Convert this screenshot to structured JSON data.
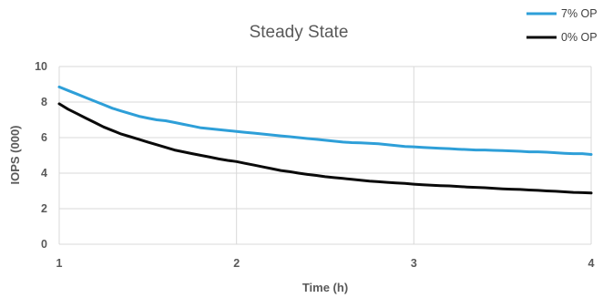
{
  "chart_data": {
    "type": "line",
    "title": "Steady State",
    "xlabel": "Time (h)",
    "ylabel": "IOPS (000)",
    "xlim": [
      1,
      4
    ],
    "ylim": [
      0,
      10
    ],
    "x_ticks": [
      "1",
      "2",
      "3",
      "4"
    ],
    "y_ticks": [
      "0",
      "2",
      "4",
      "6",
      "8",
      "10"
    ],
    "grid": true,
    "legend_position": "top-right",
    "series": [
      {
        "name": "7% OP",
        "color": "#2e9fd8",
        "x": [
          1.0,
          1.05,
          1.1,
          1.15,
          1.2,
          1.25,
          1.3,
          1.35,
          1.4,
          1.45,
          1.5,
          1.55,
          1.6,
          1.65,
          1.7,
          1.75,
          1.8,
          1.85,
          1.9,
          1.95,
          2.0,
          2.05,
          2.1,
          2.15,
          2.2,
          2.25,
          2.3,
          2.35,
          2.4,
          2.45,
          2.5,
          2.55,
          2.6,
          2.65,
          2.7,
          2.75,
          2.8,
          2.85,
          2.9,
          2.95,
          3.0,
          3.05,
          3.1,
          3.15,
          3.2,
          3.25,
          3.3,
          3.35,
          3.4,
          3.45,
          3.5,
          3.55,
          3.6,
          3.65,
          3.7,
          3.75,
          3.8,
          3.85,
          3.9,
          3.95,
          4.0
        ],
        "values": [
          8.85,
          8.65,
          8.45,
          8.25,
          8.05,
          7.85,
          7.65,
          7.5,
          7.35,
          7.2,
          7.1,
          7.0,
          6.95,
          6.85,
          6.75,
          6.65,
          6.55,
          6.5,
          6.45,
          6.4,
          6.35,
          6.3,
          6.25,
          6.2,
          6.15,
          6.1,
          6.05,
          6.0,
          5.95,
          5.9,
          5.85,
          5.8,
          5.75,
          5.72,
          5.7,
          5.68,
          5.65,
          5.6,
          5.55,
          5.5,
          5.48,
          5.45,
          5.42,
          5.4,
          5.38,
          5.35,
          5.33,
          5.3,
          5.3,
          5.28,
          5.27,
          5.25,
          5.23,
          5.2,
          5.2,
          5.18,
          5.15,
          5.12,
          5.1,
          5.1,
          5.05
        ]
      },
      {
        "name": "0% OP",
        "color": "#0a0a0a",
        "x": [
          1.0,
          1.05,
          1.1,
          1.15,
          1.2,
          1.25,
          1.3,
          1.35,
          1.4,
          1.45,
          1.5,
          1.55,
          1.6,
          1.65,
          1.7,
          1.75,
          1.8,
          1.85,
          1.9,
          1.95,
          2.0,
          2.05,
          2.1,
          2.15,
          2.2,
          2.25,
          2.3,
          2.35,
          2.4,
          2.45,
          2.5,
          2.55,
          2.6,
          2.65,
          2.7,
          2.75,
          2.8,
          2.85,
          2.9,
          2.95,
          3.0,
          3.05,
          3.1,
          3.15,
          3.2,
          3.25,
          3.3,
          3.35,
          3.4,
          3.45,
          3.5,
          3.55,
          3.6,
          3.65,
          3.7,
          3.75,
          3.8,
          3.85,
          3.9,
          3.95,
          4.0
        ],
        "values": [
          7.9,
          7.6,
          7.35,
          7.1,
          6.85,
          6.6,
          6.4,
          6.2,
          6.05,
          5.9,
          5.75,
          5.6,
          5.45,
          5.3,
          5.2,
          5.1,
          5.0,
          4.9,
          4.8,
          4.72,
          4.65,
          4.55,
          4.45,
          4.35,
          4.25,
          4.15,
          4.08,
          4.0,
          3.93,
          3.87,
          3.8,
          3.75,
          3.7,
          3.65,
          3.6,
          3.55,
          3.52,
          3.48,
          3.45,
          3.42,
          3.38,
          3.35,
          3.32,
          3.3,
          3.28,
          3.25,
          3.22,
          3.2,
          3.18,
          3.15,
          3.12,
          3.1,
          3.08,
          3.05,
          3.03,
          3.0,
          2.98,
          2.95,
          2.92,
          2.9,
          2.88
        ]
      }
    ]
  }
}
